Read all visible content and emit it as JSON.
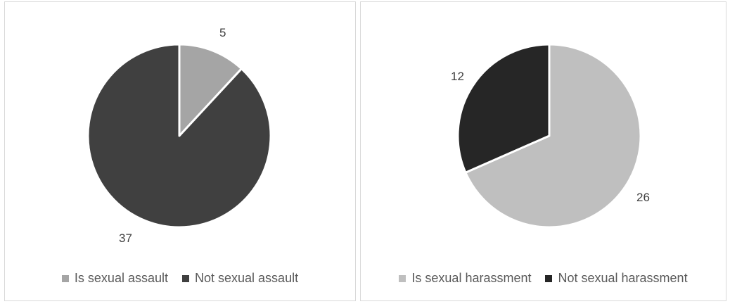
{
  "chart_data": [
    {
      "type": "pie",
      "title": "",
      "categories": [
        "Is sexual assault",
        "Not sexual assault"
      ],
      "values": [
        5,
        37
      ],
      "colors": [
        "#a5a5a5",
        "#404040"
      ],
      "legend": {
        "position": "bottom"
      },
      "data_labels": [
        "5",
        "37"
      ]
    },
    {
      "type": "pie",
      "title": "",
      "categories": [
        "Is sexual harassment",
        "Not sexual harassment"
      ],
      "values": [
        26,
        12
      ],
      "colors": [
        "#bfbfbf",
        "#262626"
      ],
      "legend": {
        "position": "bottom"
      },
      "data_labels": [
        "26",
        "12"
      ]
    }
  ]
}
